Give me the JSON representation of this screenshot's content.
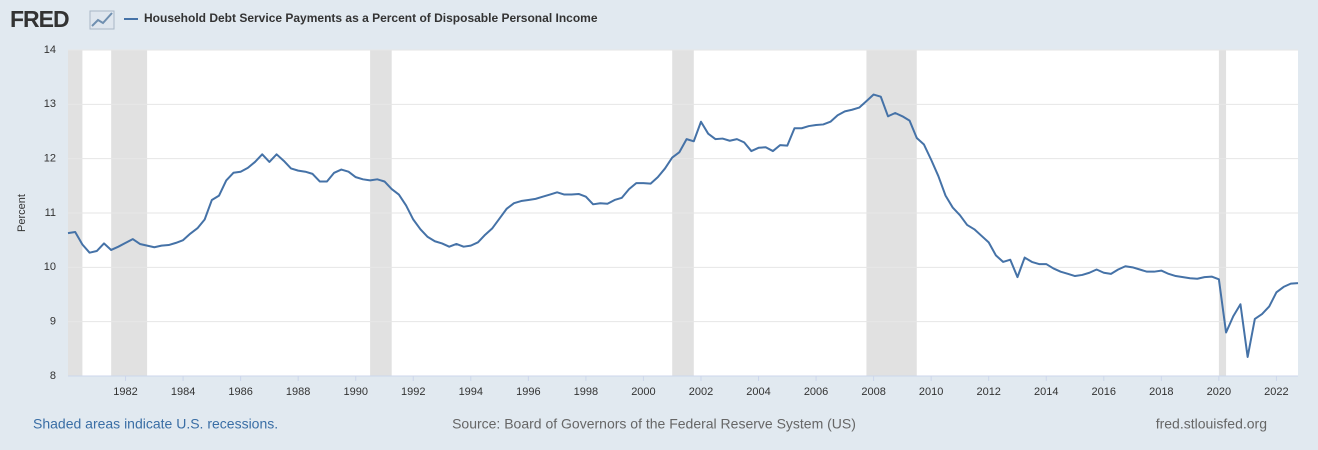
{
  "logo": "FRED",
  "notes": [
    "Shaded areas indicate U.S. recessions.",
    "Source: Board of Governors of the Federal Reserve System (US)",
    "fred.stlouisfed.org"
  ],
  "chart_data": {
    "type": "line",
    "y_label": "Percent",
    "grid": true,
    "xlim": [
      1980,
      2022.75
    ],
    "xticks": [
      1982,
      1984,
      1986,
      1988,
      1990,
      1992,
      1994,
      1996,
      1998,
      2000,
      2002,
      2004,
      2006,
      2008,
      2010,
      2012,
      2014,
      2016,
      2018,
      2020,
      2022
    ],
    "ylim": [
      8,
      14
    ],
    "yticks": [
      8,
      9,
      10,
      11,
      12,
      13,
      14
    ],
    "recession_color": "#e1e1e1",
    "recessions": [
      [
        1980,
        1980.5
      ],
      [
        1981.5,
        1982.75
      ],
      [
        1990.5,
        1991.25
      ],
      [
        2001,
        2001.75
      ],
      [
        2007.75,
        2009.5
      ],
      [
        2020,
        2020.25
      ]
    ],
    "x": [
      1980,
      1980.25,
      1980.5,
      1980.75,
      1981,
      1981.25,
      1981.5,
      1981.75,
      1982,
      1982.25,
      1982.5,
      1982.75,
      1983,
      1983.25,
      1983.5,
      1983.75,
      1984,
      1984.25,
      1984.5,
      1984.75,
      1985,
      1985.25,
      1985.5,
      1985.75,
      1986,
      1986.25,
      1986.5,
      1986.75,
      1987,
      1987.25,
      1987.5,
      1987.75,
      1988,
      1988.25,
      1988.5,
      1988.75,
      1989,
      1989.25,
      1989.5,
      1989.75,
      1990,
      1990.25,
      1990.5,
      1990.75,
      1991,
      1991.25,
      1991.5,
      1991.75,
      1992,
      1992.25,
      1992.5,
      1992.75,
      1993,
      1993.25,
      1993.5,
      1993.75,
      1994,
      1994.25,
      1994.5,
      1994.75,
      1995,
      1995.25,
      1995.5,
      1995.75,
      1996,
      1996.25,
      1996.5,
      1996.75,
      1997,
      1997.25,
      1997.5,
      1997.75,
      1998,
      1998.25,
      1998.5,
      1998.75,
      1999,
      1999.25,
      1999.5,
      1999.75,
      2000,
      2000.25,
      2000.5,
      2000.75,
      2001,
      2001.25,
      2001.5,
      2001.75,
      2002,
      2002.25,
      2002.5,
      2002.75,
      2003,
      2003.25,
      2003.5,
      2003.75,
      2004,
      2004.25,
      2004.5,
      2004.75,
      2005,
      2005.25,
      2005.5,
      2005.75,
      2006,
      2006.25,
      2006.5,
      2006.75,
      2007,
      2007.25,
      2007.5,
      2007.75,
      2008,
      2008.25,
      2008.5,
      2008.75,
      2009,
      2009.25,
      2009.5,
      2009.75,
      2010,
      2010.25,
      2010.5,
      2010.75,
      2011,
      2011.25,
      2011.5,
      2011.75,
      2012,
      2012.25,
      2012.5,
      2012.75,
      2013,
      2013.25,
      2013.5,
      2013.75,
      2014,
      2014.25,
      2014.5,
      2014.75,
      2015,
      2015.25,
      2015.5,
      2015.75,
      2016,
      2016.25,
      2016.5,
      2016.75,
      2017,
      2017.25,
      2017.5,
      2017.75,
      2018,
      2018.25,
      2018.5,
      2018.75,
      2019,
      2019.25,
      2019.5,
      2019.75,
      2020,
      2020.25,
      2020.5,
      2020.75,
      2021,
      2021.25,
      2021.5,
      2021.75,
      2022,
      2022.25,
      2022.5,
      2022.75
    ],
    "series": [
      {
        "name": "Household Debt Service Payments as a Percent of Disposable Personal Income",
        "color": "#4572a7",
        "values": [
          10.63,
          10.65,
          10.42,
          10.27,
          10.3,
          10.44,
          10.32,
          10.38,
          10.45,
          10.52,
          10.43,
          10.4,
          10.37,
          10.4,
          10.41,
          10.45,
          10.5,
          10.62,
          10.72,
          10.88,
          11.24,
          11.32,
          11.6,
          11.74,
          11.76,
          11.83,
          11.94,
          12.08,
          11.94,
          12.08,
          11.96,
          11.82,
          11.78,
          11.76,
          11.72,
          11.58,
          11.58,
          11.74,
          11.8,
          11.76,
          11.66,
          11.62,
          11.6,
          11.62,
          11.58,
          11.44,
          11.34,
          11.14,
          10.88,
          10.7,
          10.56,
          10.48,
          10.44,
          10.38,
          10.43,
          10.38,
          10.4,
          10.46,
          10.6,
          10.72,
          10.9,
          11.08,
          11.18,
          11.22,
          11.24,
          11.26,
          11.3,
          11.34,
          11.38,
          11.34,
          11.34,
          11.35,
          11.3,
          11.16,
          11.18,
          11.17,
          11.24,
          11.28,
          11.44,
          11.55,
          11.55,
          11.54,
          11.66,
          11.82,
          12.02,
          12.12,
          12.36,
          12.32,
          12.68,
          12.46,
          12.36,
          12.37,
          12.33,
          12.36,
          12.3,
          12.14,
          12.2,
          12.21,
          12.14,
          12.25,
          12.24,
          12.56,
          12.56,
          12.6,
          12.62,
          12.63,
          12.68,
          12.8,
          12.87,
          12.9,
          12.94,
          13.06,
          13.18,
          13.14,
          12.78,
          12.84,
          12.78,
          12.7,
          12.38,
          12.26,
          11.98,
          11.68,
          11.32,
          11.1,
          10.96,
          10.78,
          10.7,
          10.58,
          10.46,
          10.22,
          10.1,
          10.14,
          9.82,
          10.18,
          10.1,
          10.06,
          10.06,
          9.98,
          9.92,
          9.88,
          9.84,
          9.86,
          9.9,
          9.96,
          9.9,
          9.88,
          9.96,
          10.02,
          10.0,
          9.96,
          9.92,
          9.92,
          9.94,
          9.88,
          9.84,
          9.82,
          9.8,
          9.79,
          9.82,
          9.83,
          9.78,
          8.8,
          9.1,
          9.32,
          8.35,
          9.05,
          9.14,
          9.28,
          9.54,
          9.64,
          9.7,
          9.71
        ]
      }
    ]
  }
}
